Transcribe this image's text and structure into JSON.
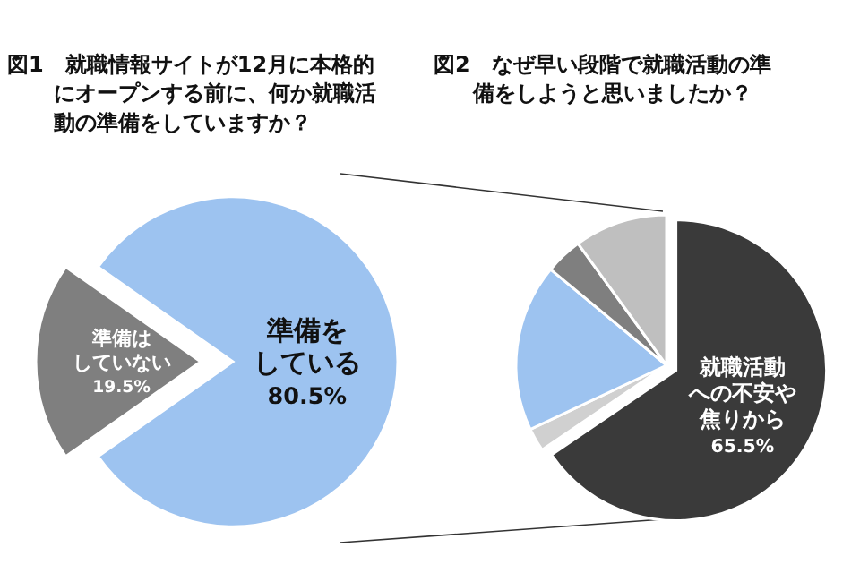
{
  "chart_data": [
    {
      "type": "pie",
      "title": "図1　就職情報サイトが12月に本格的にオープンする前に、何か就職活動の準備をしていますか？",
      "categories": [
        "準備をしている",
        "準備はしていない"
      ],
      "values": [
        80.5,
        19.5
      ],
      "value_labels": [
        "80.5%",
        "19.5%"
      ],
      "colors": [
        "#9dc3f0",
        "#7f7f7f"
      ]
    },
    {
      "type": "pie",
      "title": "図2　なぜ早い段階で就職活動の準備をしようと思いましたか？",
      "categories": [
        "就職活動への不安や焦りから",
        null,
        null,
        null,
        null
      ],
      "values": [
        65.5,
        2.5,
        18,
        4,
        10
      ],
      "value_labels": [
        "65.5%",
        null,
        null,
        null,
        null
      ],
      "colors": [
        "#3a3a3a",
        "#d0d0d0",
        "#9dc3f0",
        "#7f7f7f",
        "#bfbfbf"
      ]
    }
  ]
}
